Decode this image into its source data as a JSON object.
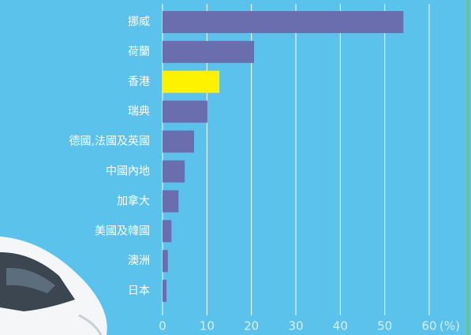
{
  "chart_data": {
    "type": "bar",
    "orientation": "horizontal",
    "categories": [
      "挪威",
      "荷蘭",
      "香港",
      "瑞典",
      "德國,法國及英國",
      "中國內地",
      "加拿大",
      "美國及韓國",
      "澳洲",
      "日本"
    ],
    "values": [
      54.2,
      20.6,
      12.8,
      10.1,
      7.1,
      5.0,
      3.6,
      2.0,
      1.2,
      0.9
    ],
    "colors": [
      "#6a6dae",
      "#6a6dae",
      "#fff200",
      "#6a6dae",
      "#6a6dae",
      "#6a6dae",
      "#6a6dae",
      "#6a6dae",
      "#6a6dae",
      "#6a6dae"
    ],
    "xlim": [
      0,
      60
    ],
    "xticks": [
      0,
      10,
      20,
      30,
      40,
      50,
      60
    ],
    "xlabel": "(%)",
    "grid": true
  }
}
